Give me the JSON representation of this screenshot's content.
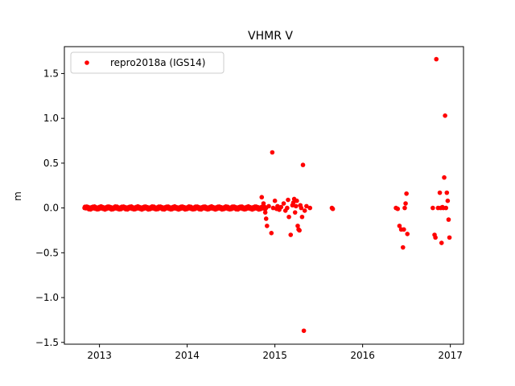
{
  "chart_data": {
    "type": "scatter",
    "title": "VHMR V",
    "xlabel": "",
    "ylabel": "m",
    "xlim": [
      2012.6,
      2017.15
    ],
    "ylim": [
      -1.52,
      1.8
    ],
    "x_ticks": [
      2013,
      2014,
      2015,
      2016,
      2017
    ],
    "x_tick_labels": [
      "2013",
      "2014",
      "2015",
      "2016",
      "2017"
    ],
    "y_ticks": [
      -1.5,
      -1.0,
      -0.5,
      0.0,
      0.5,
      1.0,
      1.5
    ],
    "y_tick_labels": [
      "−1.5",
      "−1.0",
      "−0.5",
      "0.0",
      "0.5",
      "1.0",
      "1.5"
    ],
    "grid": false,
    "legend_position": "top-left",
    "series": [
      {
        "name": "repro2018a (IGS14)",
        "color": "#ff0000",
        "marker": "circle",
        "dense_segment": {
          "x_start": 2012.83,
          "x_end": 2014.9,
          "y_center": 0.0,
          "y_spread": 0.035
        },
        "points": [
          [
            2014.85,
            0.12
          ],
          [
            2014.87,
            0.05
          ],
          [
            2014.89,
            -0.05
          ],
          [
            2014.9,
            -0.12
          ],
          [
            2014.91,
            -0.2
          ],
          [
            2014.93,
            0.02
          ],
          [
            2014.96,
            -0.28
          ],
          [
            2014.97,
            0.62
          ],
          [
            2014.98,
            0.0
          ],
          [
            2015.0,
            0.08
          ],
          [
            2015.02,
            -0.01
          ],
          [
            2015.03,
            0.02
          ],
          [
            2015.05,
            -0.02
          ],
          [
            2015.07,
            0.01
          ],
          [
            2015.1,
            0.05
          ],
          [
            2015.12,
            -0.03
          ],
          [
            2015.14,
            0.0
          ],
          [
            2015.15,
            0.09
          ],
          [
            2015.16,
            -0.1
          ],
          [
            2015.18,
            -0.3
          ],
          [
            2015.2,
            0.03
          ],
          [
            2015.21,
            0.06
          ],
          [
            2015.22,
            0.1
          ],
          [
            2015.23,
            -0.05
          ],
          [
            2015.24,
            0.02
          ],
          [
            2015.25,
            0.08
          ],
          [
            2015.26,
            -0.2
          ],
          [
            2015.27,
            -0.24
          ],
          [
            2015.28,
            -0.25
          ],
          [
            2015.29,
            0.03
          ],
          [
            2015.3,
            0.0
          ],
          [
            2015.31,
            -0.1
          ],
          [
            2015.32,
            0.48
          ],
          [
            2015.33,
            -1.37
          ],
          [
            2015.34,
            -0.03
          ],
          [
            2015.36,
            0.02
          ],
          [
            2015.4,
            0.0
          ],
          [
            2015.65,
            0.0
          ],
          [
            2015.66,
            -0.01
          ],
          [
            2016.38,
            0.0
          ],
          [
            2016.4,
            -0.01
          ],
          [
            2016.42,
            -0.2
          ],
          [
            2016.44,
            -0.24
          ],
          [
            2016.46,
            -0.44
          ],
          [
            2016.47,
            -0.24
          ],
          [
            2016.48,
            0.0
          ],
          [
            2016.49,
            0.05
          ],
          [
            2016.5,
            0.16
          ],
          [
            2016.51,
            -0.29
          ],
          [
            2016.8,
            0.0
          ],
          [
            2016.82,
            -0.3
          ],
          [
            2016.83,
            -0.33
          ],
          [
            2016.84,
            1.66
          ],
          [
            2016.86,
            0.0
          ],
          [
            2016.88,
            0.17
          ],
          [
            2016.89,
            0.0
          ],
          [
            2016.9,
            -0.39
          ],
          [
            2016.91,
            0.01
          ],
          [
            2016.92,
            0.0
          ],
          [
            2016.93,
            0.34
          ],
          [
            2016.94,
            1.03
          ],
          [
            2016.95,
            0.0
          ],
          [
            2016.96,
            0.17
          ],
          [
            2016.97,
            0.08
          ],
          [
            2016.98,
            -0.13
          ],
          [
            2016.99,
            -0.33
          ]
        ]
      }
    ]
  }
}
